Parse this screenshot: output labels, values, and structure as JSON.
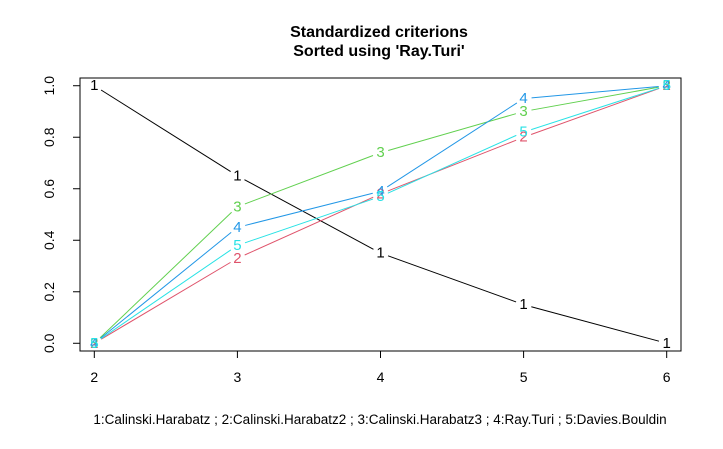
{
  "chart_data": {
    "type": "line",
    "title": "Standardized criterions",
    "subtitle": "Sorted using 'Ray.Turi'",
    "xlabel": "",
    "ylabel": "",
    "x": [
      2,
      3,
      4,
      5,
      6
    ],
    "xlim": [
      1.9,
      6.1
    ],
    "ylim": [
      -0.03,
      1.03
    ],
    "x_ticks": [
      "2",
      "3",
      "4",
      "5",
      "6"
    ],
    "y_ticks": [
      "0.0",
      "0.2",
      "0.4",
      "0.6",
      "0.8",
      "1.0"
    ],
    "caption": "1:Calinski.Harabatz ; 2:Calinski.Harabatz2 ; 3:Calinski.Harabatz3 ; 4:Ray.Turi ; 5:Davies.Bouldin",
    "grid": false,
    "series": [
      {
        "name": "Calinski.Harabatz",
        "marker": "1",
        "color": "#000000",
        "values": [
          1.0,
          0.65,
          0.35,
          0.15,
          0.0
        ]
      },
      {
        "name": "Calinski.Harabatz2",
        "marker": "2",
        "color": "#DF536B",
        "values": [
          0.0,
          0.33,
          0.58,
          0.8,
          1.0
        ]
      },
      {
        "name": "Calinski.Harabatz3",
        "marker": "3",
        "color": "#61D04F",
        "values": [
          0.0,
          0.53,
          0.74,
          0.9,
          1.0
        ]
      },
      {
        "name": "Ray.Turi",
        "marker": "4",
        "color": "#2297E6",
        "values": [
          0.0,
          0.45,
          0.59,
          0.95,
          1.0
        ]
      },
      {
        "name": "Davies.Bouldin",
        "marker": "5",
        "color": "#28E2E5",
        "values": [
          0.0,
          0.38,
          0.57,
          0.82,
          1.0
        ]
      }
    ]
  }
}
